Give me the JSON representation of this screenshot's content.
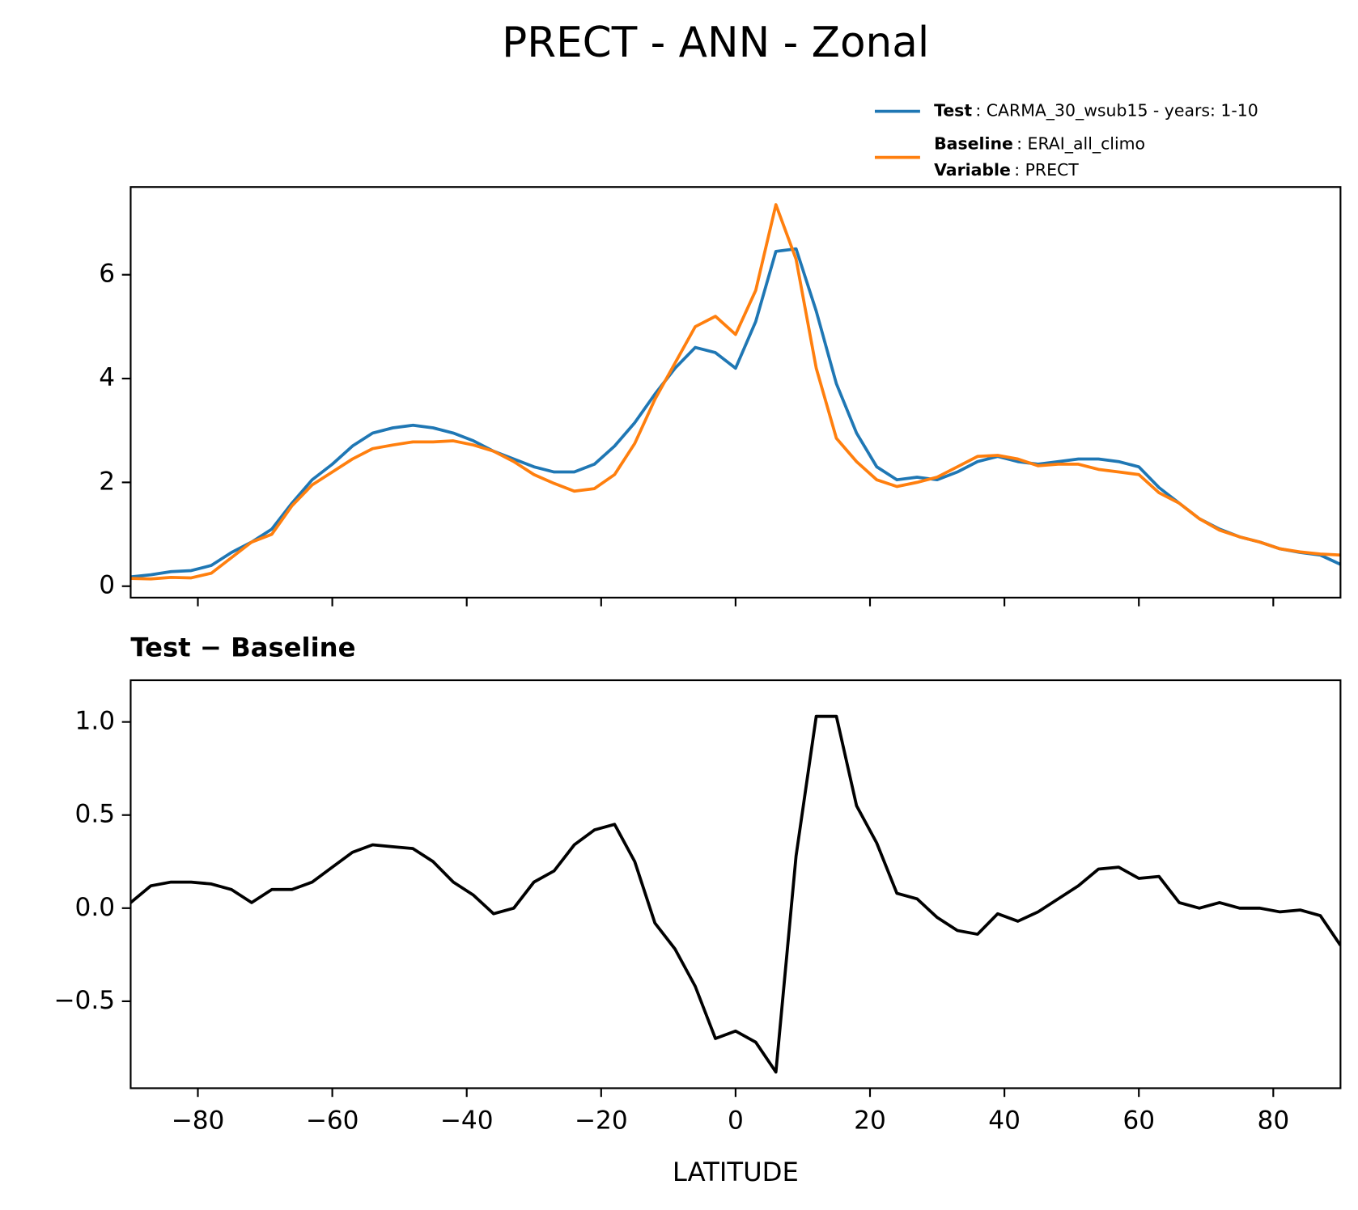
{
  "chart_data": [
    {
      "type": "line",
      "title": "PRECT - ANN - Zonal",
      "x": [
        -90,
        -87,
        -84,
        -81,
        -78,
        -75,
        -72,
        -69,
        -66,
        -63,
        -60,
        -57,
        -54,
        -51,
        -48,
        -45,
        -42,
        -39,
        -36,
        -33,
        -30,
        -27,
        -24,
        -21,
        -18,
        -15,
        -12,
        -9,
        -6,
        -3,
        0,
        3,
        6,
        9,
        12,
        15,
        18,
        21,
        24,
        27,
        30,
        33,
        36,
        39,
        42,
        45,
        48,
        51,
        54,
        57,
        60,
        63,
        66,
        69,
        72,
        75,
        78,
        81,
        84,
        87,
        90
      ],
      "series": [
        {
          "name": "Test",
          "info": ": CARMA_30_wsub15 - years: 1-10",
          "color": "#1f77b4",
          "values": [
            0.18,
            0.22,
            0.28,
            0.3,
            0.4,
            0.65,
            0.85,
            1.1,
            1.6,
            2.05,
            2.35,
            2.7,
            2.95,
            3.05,
            3.1,
            3.05,
            2.95,
            2.8,
            2.6,
            2.45,
            2.3,
            2.2,
            2.2,
            2.35,
            2.7,
            3.15,
            3.7,
            4.2,
            4.6,
            4.5,
            4.2,
            5.1,
            6.45,
            6.5,
            5.3,
            3.9,
            2.95,
            2.3,
            2.05,
            2.1,
            2.05,
            2.2,
            2.4,
            2.5,
            2.4,
            2.35,
            2.4,
            2.45,
            2.45,
            2.4,
            2.3,
            1.9,
            1.6,
            1.3,
            1.1,
            0.95,
            0.85,
            0.72,
            0.65,
            0.6,
            0.42
          ]
        },
        {
          "name": "Baseline",
          "info": ": ERAI_all_climo",
          "color": "#ff7f0e",
          "values": [
            0.15,
            0.14,
            0.17,
            0.16,
            0.25,
            0.55,
            0.85,
            1.0,
            1.55,
            1.95,
            2.2,
            2.45,
            2.65,
            2.72,
            2.78,
            2.78,
            2.8,
            2.72,
            2.6,
            2.4,
            2.15,
            1.98,
            1.83,
            1.88,
            2.15,
            2.75,
            3.6,
            4.3,
            5.0,
            5.2,
            4.85,
            5.7,
            7.35,
            6.3,
            4.2,
            2.85,
            2.4,
            2.05,
            1.92,
            2.0,
            2.1,
            2.3,
            2.5,
            2.52,
            2.45,
            2.32,
            2.35,
            2.35,
            2.25,
            2.2,
            2.15,
            1.8,
            1.6,
            1.3,
            1.08,
            0.95,
            0.85,
            0.72,
            0.66,
            0.62,
            0.6
          ]
        }
      ],
      "legend_extra": {
        "name": "Variable",
        "info": ": PRECT"
      },
      "xlim": [
        -90,
        90
      ],
      "ylim": [
        -0.22,
        7.69
      ],
      "xticks": [
        -80,
        -60,
        -40,
        -20,
        0,
        20,
        40,
        60,
        80
      ],
      "yticks": [
        0,
        2,
        4,
        6
      ]
    },
    {
      "type": "line",
      "title": "Test − Baseline",
      "xlabel": "LATITUDE",
      "x": [
        -90,
        -87,
        -84,
        -81,
        -78,
        -75,
        -72,
        -69,
        -66,
        -63,
        -60,
        -57,
        -54,
        -51,
        -48,
        -45,
        -42,
        -39,
        -36,
        -33,
        -30,
        -27,
        -24,
        -21,
        -18,
        -15,
        -12,
        -9,
        -6,
        -3,
        0,
        3,
        6,
        9,
        12,
        15,
        18,
        21,
        24,
        27,
        30,
        33,
        36,
        39,
        42,
        45,
        48,
        51,
        54,
        57,
        60,
        63,
        66,
        69,
        72,
        75,
        78,
        81,
        84,
        87,
        90
      ],
      "series": [
        {
          "color": "#000000",
          "values": [
            0.03,
            0.12,
            0.14,
            0.14,
            0.13,
            0.1,
            0.03,
            0.1,
            0.1,
            0.14,
            0.22,
            0.3,
            0.34,
            0.33,
            0.32,
            0.25,
            0.14,
            0.07,
            -0.03,
            0.0,
            0.14,
            0.2,
            0.34,
            0.42,
            0.45,
            0.25,
            -0.08,
            -0.22,
            -0.42,
            -0.7,
            -0.66,
            -0.72,
            -0.88,
            0.28,
            1.03,
            1.03,
            0.55,
            0.35,
            0.08,
            0.05,
            -0.05,
            -0.12,
            -0.14,
            -0.03,
            -0.07,
            -0.02,
            0.05,
            0.12,
            0.21,
            0.22,
            0.16,
            0.17,
            0.03,
            0.0,
            0.03,
            0.0,
            0.0,
            -0.02,
            -0.01,
            -0.04,
            -0.2
          ]
        }
      ],
      "xlim": [
        -90,
        90
      ],
      "ylim": [
        -0.967,
        1.224
      ],
      "xticks": [
        {
          "value": -80,
          "label": "−80"
        },
        {
          "value": -60,
          "label": "−60"
        },
        {
          "value": -40,
          "label": "−40"
        },
        {
          "value": -20,
          "label": "−20"
        },
        0,
        20,
        40,
        60,
        80
      ],
      "yticks": [
        {
          "value": -0.5,
          "label": "−0.5"
        },
        {
          "value": 0,
          "label": "0.0"
        },
        {
          "value": 0.5,
          "label": "0.5"
        },
        {
          "value": 1,
          "label": "1.0"
        }
      ]
    }
  ]
}
